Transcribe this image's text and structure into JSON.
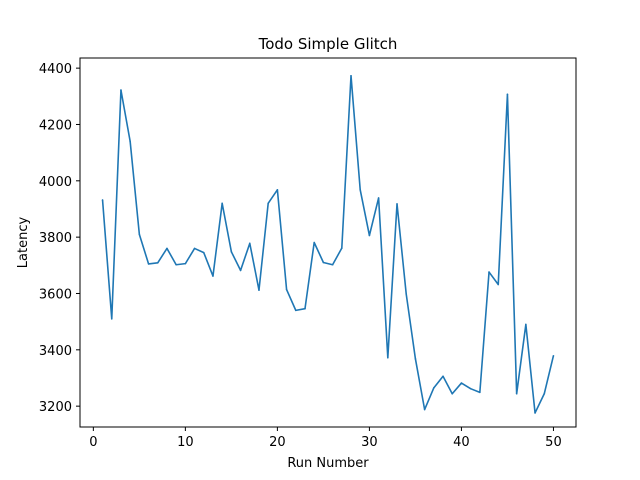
{
  "chart_data": {
    "type": "line",
    "title": "Todo Simple Glitch",
    "xlabel": "Run Number",
    "ylabel": "Latency",
    "xlim": [
      -1.45,
      52.45
    ],
    "ylim": [
      3126,
      4436
    ],
    "xticks": [
      0,
      10,
      20,
      30,
      40,
      50
    ],
    "yticks": [
      3200,
      3400,
      3600,
      3800,
      4000,
      4200,
      4400
    ],
    "grid": false,
    "legend": "none",
    "series": [
      {
        "color": "#1f77b4",
        "x": [
          1,
          2,
          3,
          4,
          5,
          6,
          7,
          8,
          9,
          10,
          11,
          12,
          13,
          14,
          15,
          16,
          17,
          18,
          19,
          20,
          21,
          22,
          23,
          24,
          25,
          26,
          27,
          28,
          29,
          30,
          31,
          32,
          33,
          34,
          35,
          36,
          37,
          38,
          39,
          40,
          41,
          42,
          43,
          44,
          45,
          46,
          47,
          48,
          49,
          50
        ],
        "y": [
          3932,
          3510,
          4322,
          4140,
          3810,
          3705,
          3709,
          3760,
          3702,
          3706,
          3760,
          3745,
          3662,
          3920,
          3748,
          3682,
          3778,
          3612,
          3920,
          3968,
          3614,
          3540,
          3546,
          3781,
          3710,
          3702,
          3761,
          4373,
          3968,
          3806,
          3939,
          3372,
          3918,
          3598,
          3368,
          3188,
          3265,
          3306,
          3244,
          3282,
          3262,
          3249,
          3676,
          3632,
          4307,
          3244,
          3490,
          3176,
          3244,
          3379
        ]
      }
    ]
  }
}
